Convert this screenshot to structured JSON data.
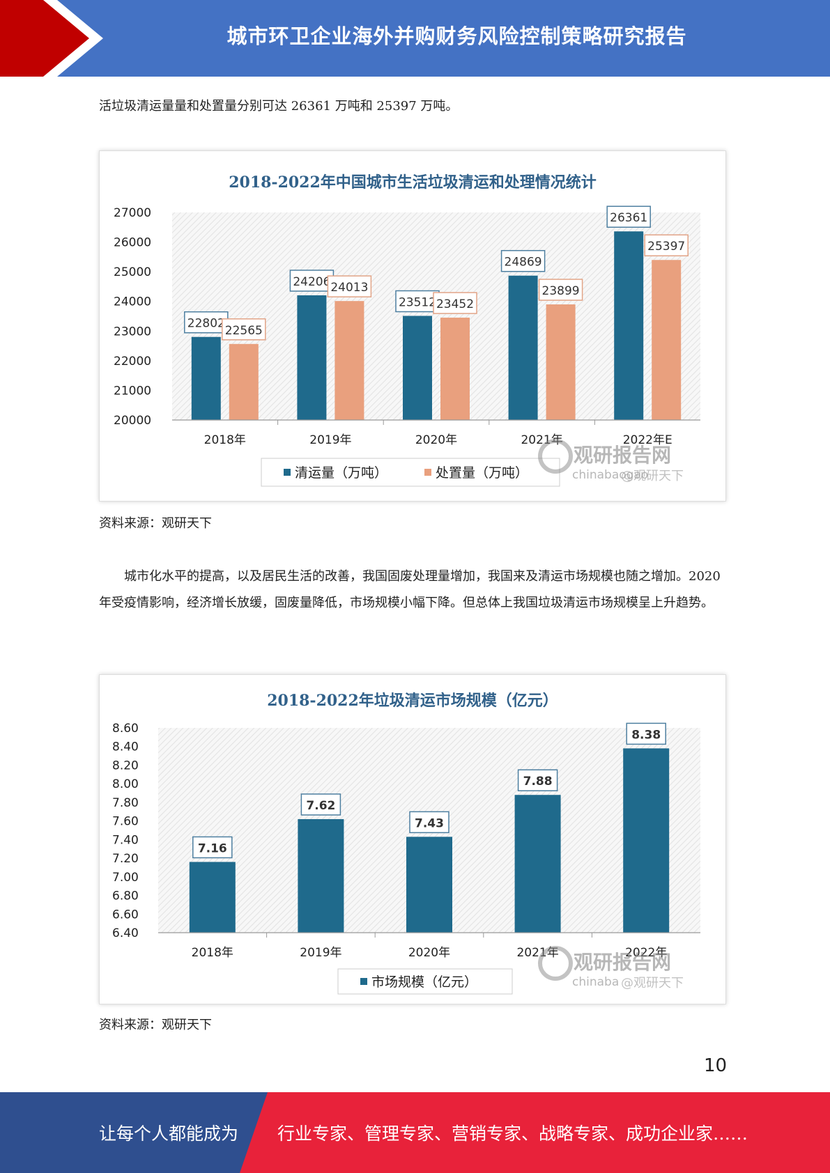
{
  "header": {
    "title": "城市环卫企业海外并购财务风险控制策略研究报告"
  },
  "paragraph1": "活垃圾清运量量和处置量分别可达 26361 万吨和 25397 万吨。",
  "chart1": {
    "title": "2018-2022年中国城市生活垃圾清运和处理情况统计",
    "source": "资料来源：观研天下",
    "watermark": {
      "brand": "观研报告网",
      "url": "chinabaogao",
      "weibo": "@观研天下"
    }
  },
  "paragraph2": "城市化水平的提高，以及居民生活的改善，我国固废处理量增加，我国来及清运市场规模也随之增加。2020 年受疫情影响，经济增长放缓，固废量降低，市场规模小幅下降。但总体上我国垃圾清运市场规模呈上升趋势。",
  "chart2": {
    "title": "2018-2022年垃圾清运市场规模（亿元）",
    "source": "资料来源：观研天下",
    "watermark": {
      "brand": "观研报告网",
      "url": "chinaba",
      "weibo": "@观研天下"
    }
  },
  "chart_data": [
    {
      "type": "bar",
      "title": "2018-2022年中国城市生活垃圾清运和处理情况统计",
      "categories": [
        "2018年",
        "2019年",
        "2020年",
        "2021年",
        "2022年E"
      ],
      "series": [
        {
          "name": "清运量（万吨）",
          "values": [
            22802,
            24206,
            23512,
            24869,
            26361
          ],
          "color": "#1f6a8c"
        },
        {
          "name": "处置量（万吨）",
          "values": [
            22565,
            24013,
            23452,
            23899,
            25397
          ],
          "color": "#e9a07e"
        }
      ],
      "ylim": [
        20000,
        27000
      ],
      "yticks": [
        20000,
        21000,
        22000,
        23000,
        24000,
        25000,
        26000,
        27000
      ],
      "legend": "bottom",
      "grid": false
    },
    {
      "type": "bar",
      "title": "2018-2022年垃圾清运市场规模（亿元）",
      "categories": [
        "2018年",
        "2019年",
        "2020年",
        "2021年",
        "2022年"
      ],
      "series": [
        {
          "name": "市场规模（亿元）",
          "values": [
            7.16,
            7.62,
            7.43,
            7.88,
            8.38
          ],
          "color": "#1f6a8c"
        }
      ],
      "ylim": [
        6.4,
        8.6
      ],
      "yticks": [
        "6.40",
        "6.60",
        "6.80",
        "7.00",
        "7.20",
        "7.40",
        "7.60",
        "7.80",
        "8.00",
        "8.20",
        "8.40",
        "8.60"
      ],
      "legend": "bottom",
      "grid": false
    }
  ],
  "page_number": "10",
  "footer": {
    "left": "让每个人都能成为",
    "right": "行业专家、管理专家、营销专家、战略专家、成功企业家……"
  }
}
